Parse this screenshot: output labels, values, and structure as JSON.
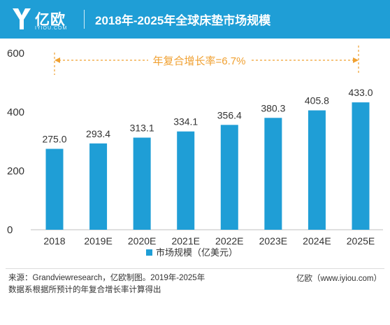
{
  "header": {
    "brand": "亿欧",
    "brand_sub": "IYIOU.COM",
    "title": "2018年-2025年全球床垫市场规模",
    "bg_color": "#1f9ed6"
  },
  "chart_data": {
    "type": "bar",
    "categories": [
      "2018",
      "2019E",
      "2020E",
      "2021E",
      "2022E",
      "2023E",
      "2024E",
      "2025E"
    ],
    "series": [
      {
        "name": "市场规模（亿美元）",
        "values": [
          275.0,
          293.4,
          313.1,
          334.1,
          356.4,
          380.3,
          405.8,
          433.0
        ],
        "color": "#1f9ed6"
      }
    ],
    "value_labels": [
      "275.0",
      "293.4",
      "313.1",
      "334.1",
      "356.4",
      "380.3",
      "405.8",
      "433.0"
    ],
    "y_ticks": [
      "0",
      "200",
      "400",
      "600"
    ],
    "ylim": [
      0,
      600
    ],
    "annotation": "年复合增长率=6.7%",
    "annotation_color": "#f0a030",
    "legend_position": "bottom",
    "grid": false
  },
  "footer": {
    "source_line1": "来源：Grandviewresearch，亿欧制图。2019年-2025年",
    "source_line2": "数据系根据所预计的年复合增长率计算得出",
    "credit": "亿欧（www.iyiou.com）"
  }
}
